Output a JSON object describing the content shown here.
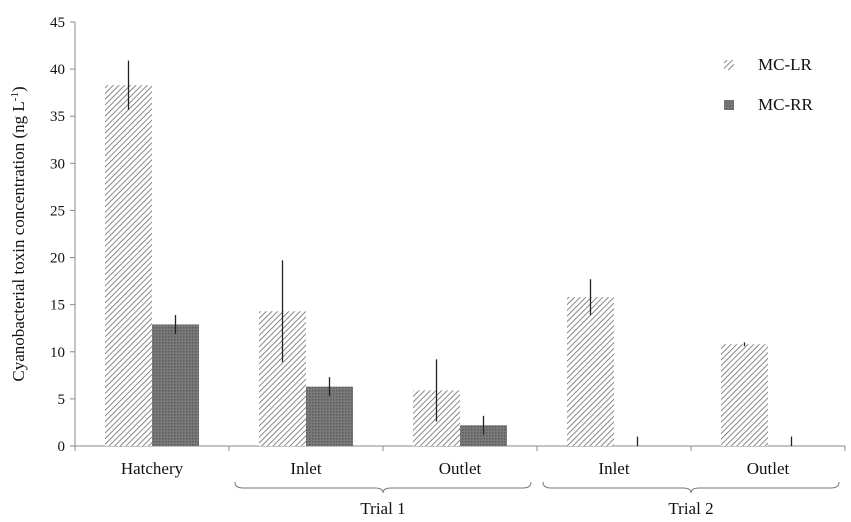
{
  "chart_data": {
    "type": "bar",
    "ylabel": "Cyanobacterial toxin concentration (ng L",
    "ylabel_superscript": "-1",
    "ylabel_close": ")",
    "xlabel": "",
    "ylim": [
      0,
      45
    ],
    "yticks": [
      0,
      5,
      10,
      15,
      20,
      25,
      30,
      35,
      40,
      45
    ],
    "categories": [
      "Hatchery",
      "Inlet",
      "Outlet",
      "Inlet",
      "Outlet"
    ],
    "groups": [
      {
        "label": "Trial 1",
        "categories": [
          1,
          2
        ]
      },
      {
        "label": "Trial 2",
        "categories": [
          3,
          4
        ]
      }
    ],
    "series": [
      {
        "name": "MC-LR",
        "pattern": "hatch",
        "values": [
          38.3,
          14.3,
          5.9,
          15.8,
          10.8
        ],
        "errors": [
          2.6,
          5.4,
          3.3,
          1.9,
          0.2
        ]
      },
      {
        "name": "MC-RR",
        "pattern": "dark",
        "values": [
          12.9,
          6.3,
          2.2,
          0,
          0
        ],
        "errors": [
          1.0,
          1.0,
          1.0,
          1.0,
          1.0
        ]
      }
    ],
    "legend_position": "top-right",
    "grid": false
  }
}
